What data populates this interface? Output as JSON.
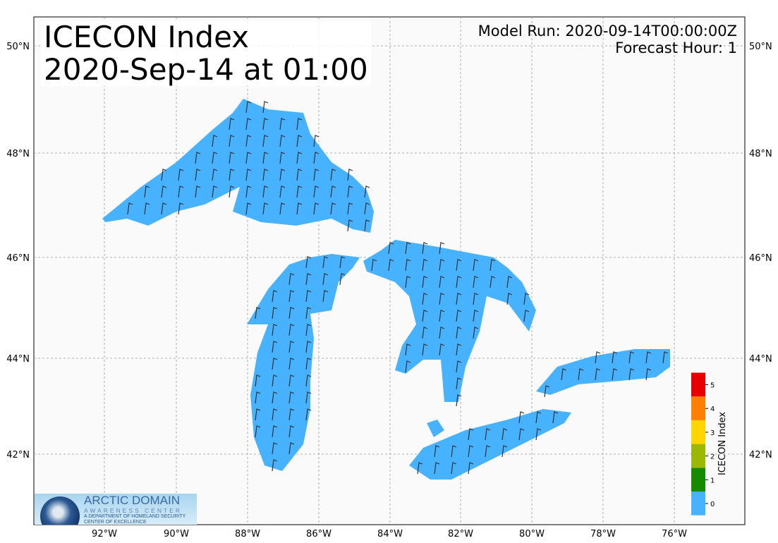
{
  "title": {
    "line1": "ICECON Index",
    "line2": "2020-Sep-14 at 01:00"
  },
  "model_run": "Model Run: 2020-09-14T00:00:00Z",
  "forecast_hour": "Forecast Hour: 1",
  "map": {
    "region": "Great Lakes",
    "lon_ticks": [
      "92°W",
      "90°W",
      "88°W",
      "86°W",
      "84°W",
      "82°W",
      "80°W",
      "78°W",
      "76°W"
    ],
    "lat_ticks": [
      "50°N",
      "48°N",
      "46°N",
      "44°N",
      "42°N"
    ],
    "gridlines": true,
    "water_color": "#47b2ff",
    "land_color": "#fafafa",
    "overlay": "wind barbs"
  },
  "colorbar": {
    "label": "ICECON Index",
    "ticks": [
      "0",
      "1",
      "2",
      "3",
      "4",
      "5"
    ],
    "colors": [
      "#47b2ff",
      "#168a00",
      "#9cb800",
      "#ffd600",
      "#ff8000",
      "#e60000"
    ]
  },
  "logo": {
    "line1": "ARCTIC DOMAIN",
    "line2": "AWARENESS CENTER",
    "line3": "A DEPARTMENT OF HOMELAND SECURITY CENTER OF EXCELLENCE"
  }
}
